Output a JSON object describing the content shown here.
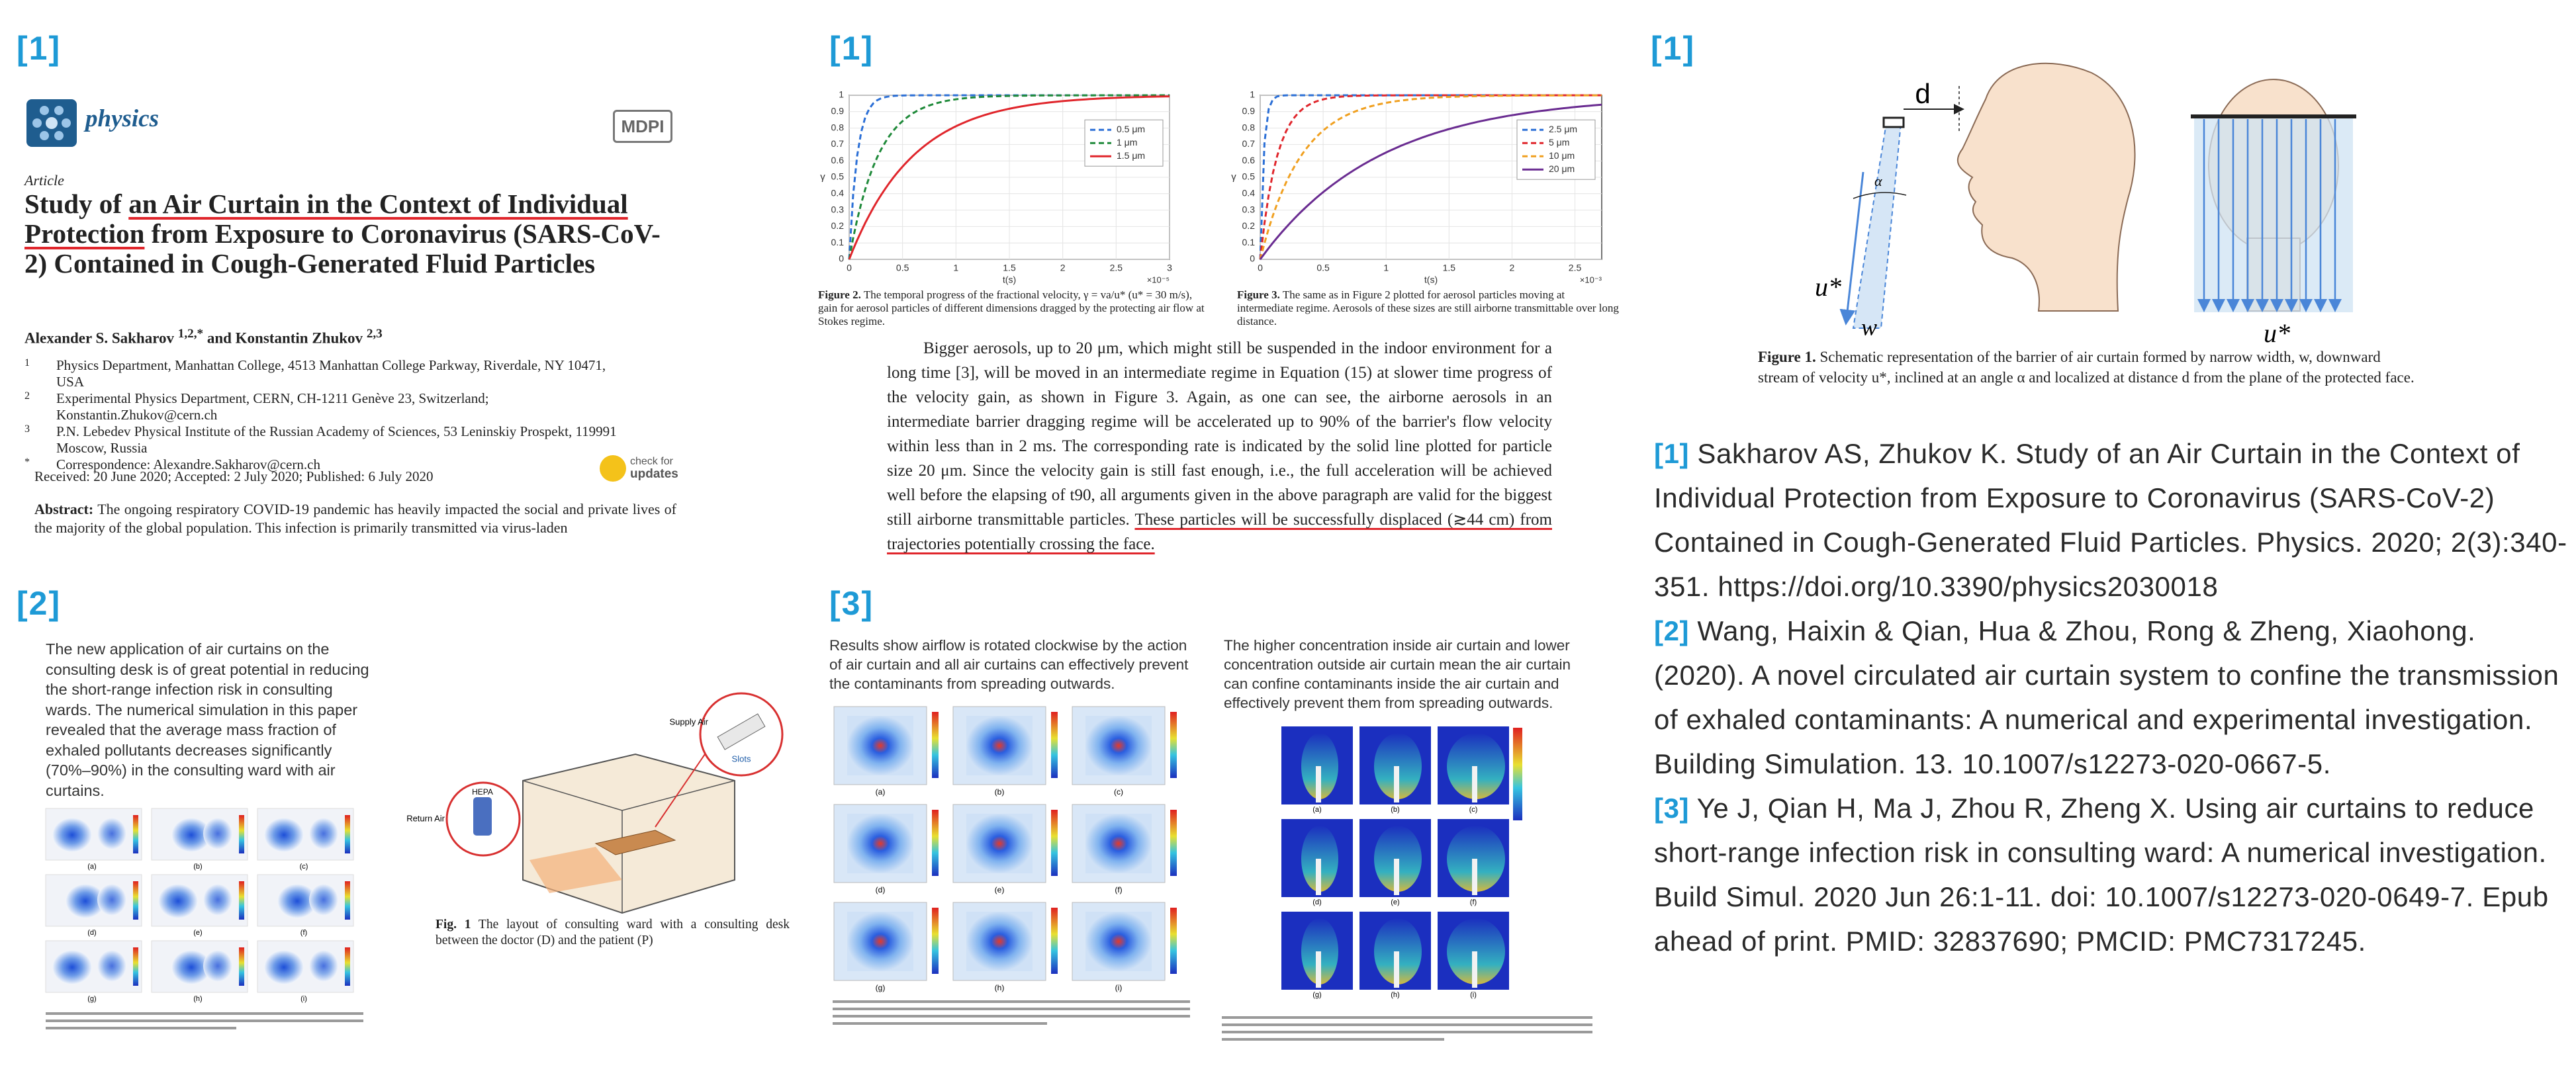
{
  "labels": {
    "p1": "[1]",
    "p2": "[1]",
    "p3": "[1]",
    "p4": "[2]",
    "p5": "[3]"
  },
  "paper": {
    "journal": "physics",
    "publisher": "MDPI",
    "article_type": "Article",
    "title": [
      {
        "text": "Study of "
      },
      {
        "text": "an Air Curtain in the Context of Individual Protection",
        "underline": true
      },
      {
        "text": " from Exposure to Coronavirus (SARS-CoV-2) Contained in Cough-Generated Fluid Particles"
      }
    ],
    "authors": [
      {
        "text": "Alexander S. Sakharov "
      },
      {
        "text": "1,2,*",
        "sup": true
      },
      {
        "text": " and Konstantin Zhukov "
      },
      {
        "text": "2,3",
        "sup": true
      }
    ],
    "affiliations": [
      {
        "mark": "1",
        "text": "Physics Department, Manhattan College, 4513 Manhattan College Parkway, Riverdale, NY 10471, USA"
      },
      {
        "mark": "2",
        "text": "Experimental Physics Department, CERN, CH-1211 Genève 23, Switzerland; Konstantin.Zhukov@cern.ch"
      },
      {
        "mark": "3",
        "text": "P.N. Lebedev Physical Institute of the Russian Academy of Sciences, 53 Leninskiy Prospekt, 119991 Moscow, Russia"
      },
      {
        "mark": "*",
        "text": "Correspondence: Alexandre.Sakharov@cern.ch"
      }
    ],
    "dates": "Received: 20 June 2020; Accepted: 2 July 2020; Published: 6 July 2020",
    "check_updates": [
      "check for",
      "updates"
    ],
    "abstract_label": "Abstract:",
    "abstract": "The ongoing respiratory COVID-19 pandemic has heavily impacted the social and private lives of the majority of the global population. This infection is primarily transmitted via virus-laden"
  },
  "figure2": {
    "legend": [
      "0.5 μm",
      "1 μm",
      "1.5 μm"
    ],
    "colors": [
      "#2b6fd6",
      "#1f8a3a",
      "#e0262c"
    ],
    "yticks": [
      "0",
      "0.1",
      "0.2",
      "0.3",
      "0.4",
      "0.5",
      "0.6",
      "0.7",
      "0.8",
      "0.9",
      "1"
    ],
    "xticks": [
      "0",
      "0.5",
      "1",
      "1.5",
      "2",
      "2.5",
      "3"
    ],
    "xlabel": "t(s)",
    "xexp": "×10⁻⁵",
    "ylabel": "γ",
    "caption_label": "Figure 2.",
    "caption": "The temporal progress of the fractional velocity, γ = va/u* (u* = 30 m/s), gain for aerosol particles of different dimensions dragged by the protecting air flow at Stokes regime."
  },
  "figure3": {
    "legend": [
      "2.5 μm",
      "5 μm",
      "10 μm",
      "20 μm"
    ],
    "colors": [
      "#2b6fd6",
      "#e0262c",
      "#f0a020",
      "#6a2c91"
    ],
    "yticks": [
      "0",
      "0.1",
      "0.2",
      "0.3",
      "0.4",
      "0.5",
      "0.6",
      "0.7",
      "0.8",
      "0.9",
      "1"
    ],
    "xticks": [
      "0",
      "0.5",
      "1",
      "1.5",
      "2",
      "2.5"
    ],
    "xlabel": "t(s)",
    "xexp": "×10⁻³",
    "ylabel": "γ",
    "caption_label": "Figure 3.",
    "caption": "The same as in Figure 2 plotted for aerosol particles moving at intermediate regime. Aerosols of these sizes are still airborne transmittable over long distance."
  },
  "paragraph": [
    {
      "text": "Bigger aerosols, up to 20 μm, which might still be suspended in the indoor environment for a long time [3], will be moved in an intermediate regime in Equation (15) at slower time progress of the velocity gain, as shown in Figure 3. Again, as one can see, the airborne aerosols in an intermediate barrier dragging regime will be accelerated up to 90% of the barrier's flow velocity within less than in 2 ms. The corresponding rate is indicated by the solid line plotted for particle size 20 μm. Since the velocity gain is still fast enough, i.e., the full acceleration will be achieved well before the elapsing of t90, all arguments given in the above paragraph are valid for the biggest still airborne transmittable particles. "
    },
    {
      "text": "These particles will be successfully displaced (≳44 cm) from trajectories potentially crossing the face.",
      "underline": true
    }
  ],
  "schematic": {
    "d": "d",
    "alpha": "α",
    "u_side": "u*",
    "w": "w",
    "u_front": "u*",
    "caption_label": "Figure 1.",
    "caption": "Schematic representation of the barrier of air curtain formed by narrow width, w, downward stream of velocity u*, inclined at an angle α and localized at distance d from the plane of the protected face."
  },
  "references": [
    {
      "label": "[1]",
      "text": "Sakharov AS, Zhukov K. Study of an Air Curtain in the Context of Individual Protection from Exposure to Coronavirus (SARS-CoV-2) Contained in Cough-Generated Fluid Particles. Physics. 2020; 2(3):340-351. https://doi.org/10.3390/physics2030018"
    },
    {
      "label": "[2]",
      "text": "Wang, Haixin & Qian, Hua & Zhou, Rong & Zheng, Xiaohong. (2020). A novel circulated air curtain system to confine the transmission of exhaled contaminants: A numerical and experimental investigation. Building Simulation. 13. 10.1007/s12273-020-0667-5."
    },
    {
      "label": "[3]",
      "text": "Ye J, Qian H, Ma J, Zhou R, Zheng X. Using air curtains to reduce short-range infection risk in consulting ward: A numerical investigation. Build Simul. 2020 Jun 26:1-11. doi: 10.1007/s12273-020-0649-7. Epub ahead of print. PMID: 32837690; PMCID: PMC7317245."
    }
  ],
  "study2": {
    "summary": "The new application of air curtains on the consulting desk is of great potential in reducing the short-range infection risk in consulting wards. The numerical simulation in this paper revealed that the average mass fraction of exhaled pollutants decreases significantly (70%–90%) in the consulting ward with air curtains.",
    "subfigs": [
      "(a)",
      "(b)",
      "(c)",
      "(d)",
      "(e)",
      "(f)",
      "(g)",
      "(h)",
      "(i)"
    ],
    "supply_air": "Supply Air",
    "slots": "Slots",
    "return_air": "Return Air",
    "hepa": "HEPA",
    "caption_label": "Fig. 1",
    "caption": "The layout of consulting ward with a consulting desk between the doctor (D) and the patient (P)"
  },
  "study3": {
    "summary_left": "Results show airflow is rotated clockwise by the action of air curtain and all air curtains can effectively prevent the contaminants from spreading outwards.",
    "summary_right": "The higher concentration inside air curtain and lower concentration outside air curtain mean the air curtain can confine contaminants inside the air curtain and effectively prevent them from spreading outwards.",
    "subfigs_left": [
      "(a)",
      "(b)",
      "(c)",
      "(d)",
      "(e)",
      "(f)",
      "(g)",
      "(h)",
      "(i)"
    ],
    "subfigs_right": [
      "(a)",
      "(b)",
      "(c)",
      "(d)",
      "(e)",
      "(f)",
      "(g)",
      "(h)",
      "(i)"
    ]
  }
}
